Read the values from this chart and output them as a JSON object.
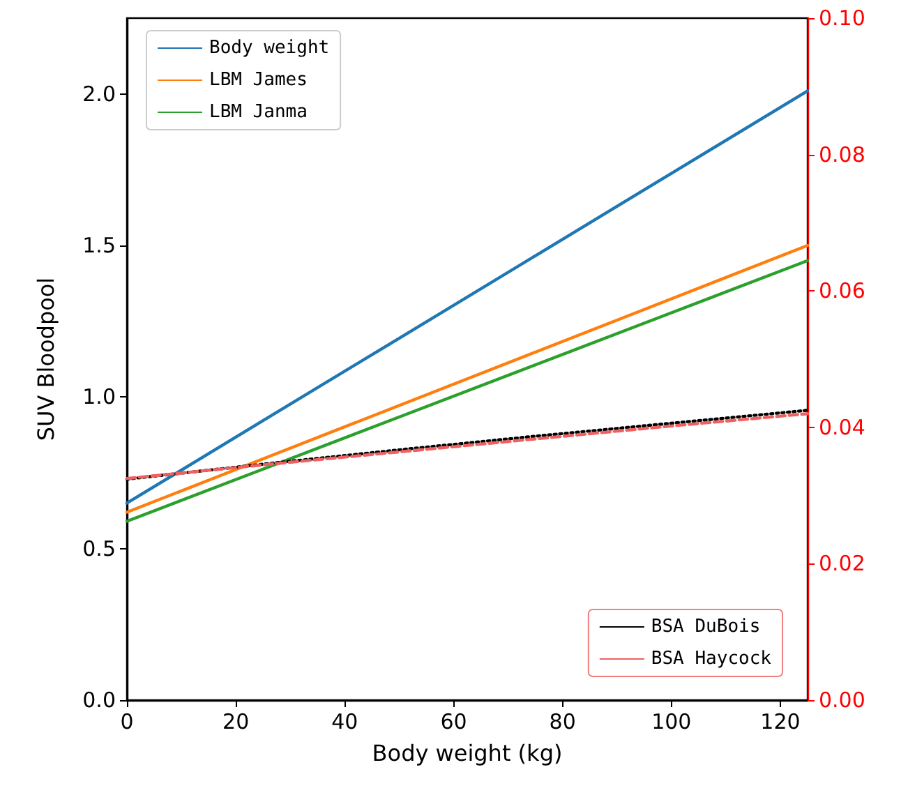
{
  "chart_data": {
    "type": "line",
    "xlabel": "Body weight (kg)",
    "ylabel": "SUV Bloodpool",
    "x": [
      0,
      25,
      50,
      75,
      100,
      125
    ],
    "series": [
      {
        "name": "Body weight",
        "color": "#1f77b4",
        "values": [
          0.65,
          0.922,
          1.194,
          1.466,
          1.738,
          2.01
        ]
      },
      {
        "name": "LBM James",
        "color": "#ff7f0e",
        "values": [
          0.62,
          0.796,
          0.972,
          1.148,
          1.324,
          1.5
        ]
      },
      {
        "name": "LBM Janma",
        "color": "#2ca02c",
        "values": [
          0.59,
          0.762,
          0.934,
          1.106,
          1.278,
          1.45
        ]
      },
      {
        "name": "BSA DuBois",
        "color": "#000000",
        "axis": "y2",
        "line_style": "dotted",
        "values": [
          0.0324,
          0.0346,
          0.0367,
          0.0387,
          0.0406,
          0.0425
        ]
      },
      {
        "name": "BSA Haycock",
        "color": "#f06060",
        "axis": "y2",
        "line_style": "dashed",
        "values": [
          0.0325,
          0.0345,
          0.0364,
          0.0383,
          0.0402,
          0.042
        ]
      }
    ],
    "xlim": [
      0,
      125
    ],
    "xticks": [
      0,
      20,
      40,
      60,
      80,
      100,
      120
    ],
    "ylim": [
      0,
      2.25
    ],
    "yticks": [
      {
        "value": 0,
        "label": "0.0"
      },
      0.5,
      {
        "value": 1,
        "label": "1.0"
      },
      1.5,
      {
        "value": 2,
        "label": "2.0"
      }
    ],
    "y2lim": [
      0,
      0.1
    ],
    "y2ticks": [
      {
        "value": 0,
        "label": "0.00"
      },
      0.02,
      0.04,
      0.06,
      0.08,
      {
        "value": 0.1,
        "label": "0.10"
      }
    ],
    "legend": "top left",
    "grid": false,
    "marker": "none",
    "line_style": "solid"
  }
}
